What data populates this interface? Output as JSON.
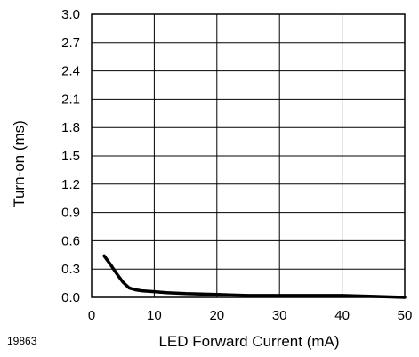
{
  "chart_data": {
    "type": "line",
    "xlabel": "LED Forward Current (mA)",
    "ylabel": "Turn-on (ms)",
    "xlim": [
      0,
      50
    ],
    "ylim": [
      0,
      3.0
    ],
    "x_ticks": [
      "0",
      "10",
      "20",
      "30",
      "40",
      "50"
    ],
    "y_ticks": [
      "0.0",
      "0.3",
      "0.6",
      "0.9",
      "1.2",
      "1.5",
      "1.8",
      "2.1",
      "2.4",
      "2.7",
      "3.0"
    ],
    "grid": true,
    "figure_id": "19863",
    "series": [
      {
        "x": [
          2,
          3,
          4,
          5,
          6,
          7,
          8,
          10,
          12,
          15,
          20,
          25,
          30,
          35,
          40,
          45,
          50
        ],
        "y": [
          0.44,
          0.35,
          0.25,
          0.16,
          0.1,
          0.08,
          0.07,
          0.06,
          0.05,
          0.04,
          0.03,
          0.02,
          0.02,
          0.02,
          0.02,
          0.01,
          0.0
        ],
        "color": "#000000"
      }
    ]
  }
}
